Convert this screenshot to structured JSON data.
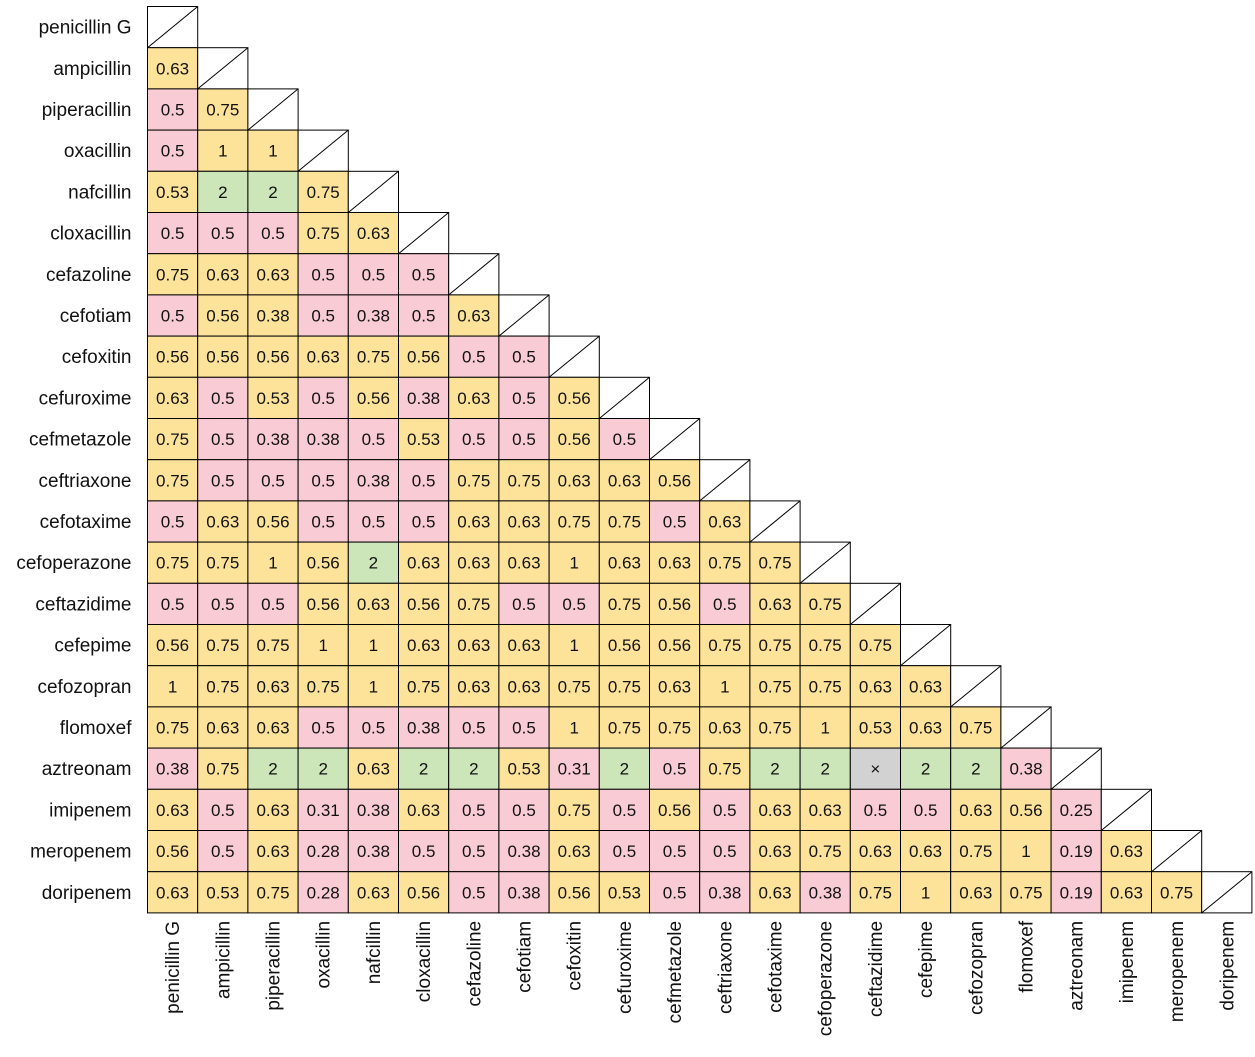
{
  "chart_data": {
    "type": "heatmap",
    "title": "",
    "drugs": [
      "penicillin G",
      "ampicillin",
      "piperacillin",
      "oxacillin",
      "nafcillin",
      "cloxacillin",
      "cefazoline",
      "cefotiam",
      "cefoxitin",
      "cefuroxime",
      "cefmetazole",
      "ceftriaxone",
      "cefotaxime",
      "cefoperazone",
      "ceftazidime",
      "cefepime",
      "cefozopran",
      "flomoxef",
      "aztreonam",
      "imipenem",
      "meropenem",
      "doripenem"
    ],
    "rows": [
      [],
      [
        {
          "v": "0.63",
          "c": "yellow"
        }
      ],
      [
        {
          "v": "0.5",
          "c": "pink"
        },
        {
          "v": "0.75",
          "c": "yellow"
        }
      ],
      [
        {
          "v": "0.5",
          "c": "pink"
        },
        {
          "v": "1",
          "c": "yellow"
        },
        {
          "v": "1",
          "c": "yellow"
        }
      ],
      [
        {
          "v": "0.53",
          "c": "yellow"
        },
        {
          "v": "2",
          "c": "green"
        },
        {
          "v": "2",
          "c": "green"
        },
        {
          "v": "0.75",
          "c": "yellow"
        }
      ],
      [
        {
          "v": "0.5",
          "c": "pink"
        },
        {
          "v": "0.5",
          "c": "pink"
        },
        {
          "v": "0.5",
          "c": "pink"
        },
        {
          "v": "0.75",
          "c": "yellow"
        },
        {
          "v": "0.63",
          "c": "yellow"
        }
      ],
      [
        {
          "v": "0.75",
          "c": "yellow"
        },
        {
          "v": "0.63",
          "c": "yellow"
        },
        {
          "v": "0.63",
          "c": "yellow"
        },
        {
          "v": "0.5",
          "c": "pink"
        },
        {
          "v": "0.5",
          "c": "pink"
        },
        {
          "v": "0.5",
          "c": "pink"
        }
      ],
      [
        {
          "v": "0.5",
          "c": "pink"
        },
        {
          "v": "0.56",
          "c": "yellow"
        },
        {
          "v": "0.38",
          "c": "yellow"
        },
        {
          "v": "0.5",
          "c": "pink"
        },
        {
          "v": "0.38",
          "c": "pink"
        },
        {
          "v": "0.5",
          "c": "pink"
        },
        {
          "v": "0.63",
          "c": "yellow"
        }
      ],
      [
        {
          "v": "0.56",
          "c": "yellow"
        },
        {
          "v": "0.56",
          "c": "yellow"
        },
        {
          "v": "0.56",
          "c": "yellow"
        },
        {
          "v": "0.63",
          "c": "yellow"
        },
        {
          "v": "0.75",
          "c": "yellow"
        },
        {
          "v": "0.56",
          "c": "yellow"
        },
        {
          "v": "0.5",
          "c": "pink"
        },
        {
          "v": "0.5",
          "c": "pink"
        }
      ],
      [
        {
          "v": "0.63",
          "c": "yellow"
        },
        {
          "v": "0.5",
          "c": "pink"
        },
        {
          "v": "0.53",
          "c": "yellow"
        },
        {
          "v": "0.5",
          "c": "pink"
        },
        {
          "v": "0.56",
          "c": "yellow"
        },
        {
          "v": "0.38",
          "c": "pink"
        },
        {
          "v": "0.63",
          "c": "yellow"
        },
        {
          "v": "0.5",
          "c": "pink"
        },
        {
          "v": "0.56",
          "c": "yellow"
        }
      ],
      [
        {
          "v": "0.75",
          "c": "yellow"
        },
        {
          "v": "0.5",
          "c": "pink"
        },
        {
          "v": "0.38",
          "c": "pink"
        },
        {
          "v": "0.38",
          "c": "pink"
        },
        {
          "v": "0.5",
          "c": "pink"
        },
        {
          "v": "0.53",
          "c": "yellow"
        },
        {
          "v": "0.5",
          "c": "pink"
        },
        {
          "v": "0.5",
          "c": "pink"
        },
        {
          "v": "0.56",
          "c": "yellow"
        },
        {
          "v": "0.5",
          "c": "pink"
        }
      ],
      [
        {
          "v": "0.75",
          "c": "yellow"
        },
        {
          "v": "0.5",
          "c": "pink"
        },
        {
          "v": "0.5",
          "c": "pink"
        },
        {
          "v": "0.5",
          "c": "pink"
        },
        {
          "v": "0.38",
          "c": "pink"
        },
        {
          "v": "0.5",
          "c": "pink"
        },
        {
          "v": "0.75",
          "c": "yellow"
        },
        {
          "v": "0.75",
          "c": "yellow"
        },
        {
          "v": "0.63",
          "c": "yellow"
        },
        {
          "v": "0.63",
          "c": "yellow"
        },
        {
          "v": "0.56",
          "c": "yellow"
        }
      ],
      [
        {
          "v": "0.5",
          "c": "pink"
        },
        {
          "v": "0.63",
          "c": "yellow"
        },
        {
          "v": "0.56",
          "c": "yellow"
        },
        {
          "v": "0.5",
          "c": "pink"
        },
        {
          "v": "0.5",
          "c": "pink"
        },
        {
          "v": "0.5",
          "c": "pink"
        },
        {
          "v": "0.63",
          "c": "yellow"
        },
        {
          "v": "0.63",
          "c": "yellow"
        },
        {
          "v": "0.75",
          "c": "yellow"
        },
        {
          "v": "0.75",
          "c": "yellow"
        },
        {
          "v": "0.5",
          "c": "pink"
        },
        {
          "v": "0.63",
          "c": "yellow"
        }
      ],
      [
        {
          "v": "0.75",
          "c": "yellow"
        },
        {
          "v": "0.75",
          "c": "yellow"
        },
        {
          "v": "1",
          "c": "yellow"
        },
        {
          "v": "0.56",
          "c": "yellow"
        },
        {
          "v": "2",
          "c": "green"
        },
        {
          "v": "0.63",
          "c": "yellow"
        },
        {
          "v": "0.63",
          "c": "yellow"
        },
        {
          "v": "0.63",
          "c": "yellow"
        },
        {
          "v": "1",
          "c": "yellow"
        },
        {
          "v": "0.63",
          "c": "yellow"
        },
        {
          "v": "0.63",
          "c": "yellow"
        },
        {
          "v": "0.75",
          "c": "yellow"
        },
        {
          "v": "0.75",
          "c": "yellow"
        }
      ],
      [
        {
          "v": "0.5",
          "c": "pink"
        },
        {
          "v": "0.5",
          "c": "pink"
        },
        {
          "v": "0.5",
          "c": "pink"
        },
        {
          "v": "0.56",
          "c": "yellow"
        },
        {
          "v": "0.63",
          "c": "yellow"
        },
        {
          "v": "0.56",
          "c": "yellow"
        },
        {
          "v": "0.75",
          "c": "yellow"
        },
        {
          "v": "0.5",
          "c": "pink"
        },
        {
          "v": "0.5",
          "c": "pink"
        },
        {
          "v": "0.75",
          "c": "yellow"
        },
        {
          "v": "0.56",
          "c": "yellow"
        },
        {
          "v": "0.5",
          "c": "pink"
        },
        {
          "v": "0.63",
          "c": "yellow"
        },
        {
          "v": "0.75",
          "c": "yellow"
        }
      ],
      [
        {
          "v": "0.56",
          "c": "yellow"
        },
        {
          "v": "0.75",
          "c": "yellow"
        },
        {
          "v": "0.75",
          "c": "yellow"
        },
        {
          "v": "1",
          "c": "yellow"
        },
        {
          "v": "1",
          "c": "yellow"
        },
        {
          "v": "0.63",
          "c": "yellow"
        },
        {
          "v": "0.63",
          "c": "yellow"
        },
        {
          "v": "0.63",
          "c": "yellow"
        },
        {
          "v": "1",
          "c": "yellow"
        },
        {
          "v": "0.56",
          "c": "yellow"
        },
        {
          "v": "0.56",
          "c": "yellow"
        },
        {
          "v": "0.75",
          "c": "yellow"
        },
        {
          "v": "0.75",
          "c": "yellow"
        },
        {
          "v": "0.75",
          "c": "yellow"
        },
        {
          "v": "0.75",
          "c": "yellow"
        }
      ],
      [
        {
          "v": "1",
          "c": "yellow"
        },
        {
          "v": "0.75",
          "c": "yellow"
        },
        {
          "v": "0.63",
          "c": "yellow"
        },
        {
          "v": "0.75",
          "c": "yellow"
        },
        {
          "v": "1",
          "c": "yellow"
        },
        {
          "v": "0.75",
          "c": "yellow"
        },
        {
          "v": "0.63",
          "c": "yellow"
        },
        {
          "v": "0.63",
          "c": "yellow"
        },
        {
          "v": "0.75",
          "c": "yellow"
        },
        {
          "v": "0.75",
          "c": "yellow"
        },
        {
          "v": "0.63",
          "c": "yellow"
        },
        {
          "v": "1",
          "c": "yellow"
        },
        {
          "v": "0.75",
          "c": "yellow"
        },
        {
          "v": "0.75",
          "c": "yellow"
        },
        {
          "v": "0.63",
          "c": "yellow"
        },
        {
          "v": "0.63",
          "c": "yellow"
        }
      ],
      [
        {
          "v": "0.75",
          "c": "yellow"
        },
        {
          "v": "0.63",
          "c": "yellow"
        },
        {
          "v": "0.63",
          "c": "yellow"
        },
        {
          "v": "0.5",
          "c": "pink"
        },
        {
          "v": "0.5",
          "c": "pink"
        },
        {
          "v": "0.38",
          "c": "pink"
        },
        {
          "v": "0.5",
          "c": "pink"
        },
        {
          "v": "0.5",
          "c": "pink"
        },
        {
          "v": "1",
          "c": "yellow"
        },
        {
          "v": "0.75",
          "c": "yellow"
        },
        {
          "v": "0.75",
          "c": "yellow"
        },
        {
          "v": "0.63",
          "c": "yellow"
        },
        {
          "v": "0.75",
          "c": "yellow"
        },
        {
          "v": "1",
          "c": "yellow"
        },
        {
          "v": "0.53",
          "c": "yellow"
        },
        {
          "v": "0.63",
          "c": "yellow"
        },
        {
          "v": "0.75",
          "c": "yellow"
        }
      ],
      [
        {
          "v": "0.38",
          "c": "pink"
        },
        {
          "v": "0.75",
          "c": "yellow"
        },
        {
          "v": "2",
          "c": "green"
        },
        {
          "v": "2",
          "c": "green"
        },
        {
          "v": "0.63",
          "c": "yellow"
        },
        {
          "v": "2",
          "c": "green"
        },
        {
          "v": "2",
          "c": "green"
        },
        {
          "v": "0.53",
          "c": "yellow"
        },
        {
          "v": "0.31",
          "c": "pink"
        },
        {
          "v": "2",
          "c": "green"
        },
        {
          "v": "0.5",
          "c": "pink"
        },
        {
          "v": "0.75",
          "c": "yellow"
        },
        {
          "v": "2",
          "c": "green"
        },
        {
          "v": "2",
          "c": "green"
        },
        {
          "v": "×",
          "c": "gray"
        },
        {
          "v": "2",
          "c": "green"
        },
        {
          "v": "2",
          "c": "green"
        },
        {
          "v": "0.38",
          "c": "pink"
        }
      ],
      [
        {
          "v": "0.63",
          "c": "yellow"
        },
        {
          "v": "0.5",
          "c": "pink"
        },
        {
          "v": "0.63",
          "c": "yellow"
        },
        {
          "v": "0.31",
          "c": "pink"
        },
        {
          "v": "0.38",
          "c": "pink"
        },
        {
          "v": "0.63",
          "c": "yellow"
        },
        {
          "v": "0.5",
          "c": "pink"
        },
        {
          "v": "0.5",
          "c": "pink"
        },
        {
          "v": "0.75",
          "c": "yellow"
        },
        {
          "v": "0.5",
          "c": "pink"
        },
        {
          "v": "0.56",
          "c": "yellow"
        },
        {
          "v": "0.5",
          "c": "pink"
        },
        {
          "v": "0.63",
          "c": "yellow"
        },
        {
          "v": "0.63",
          "c": "yellow"
        },
        {
          "v": "0.5",
          "c": "pink"
        },
        {
          "v": "0.5",
          "c": "pink"
        },
        {
          "v": "0.63",
          "c": "yellow"
        },
        {
          "v": "0.56",
          "c": "yellow"
        },
        {
          "v": "0.25",
          "c": "pink"
        }
      ],
      [
        {
          "v": "0.56",
          "c": "yellow"
        },
        {
          "v": "0.5",
          "c": "pink"
        },
        {
          "v": "0.63",
          "c": "yellow"
        },
        {
          "v": "0.28",
          "c": "pink"
        },
        {
          "v": "0.38",
          "c": "pink"
        },
        {
          "v": "0.5",
          "c": "pink"
        },
        {
          "v": "0.5",
          "c": "pink"
        },
        {
          "v": "0.38",
          "c": "pink"
        },
        {
          "v": "0.63",
          "c": "yellow"
        },
        {
          "v": "0.5",
          "c": "pink"
        },
        {
          "v": "0.5",
          "c": "pink"
        },
        {
          "v": "0.5",
          "c": "pink"
        },
        {
          "v": "0.63",
          "c": "yellow"
        },
        {
          "v": "0.75",
          "c": "yellow"
        },
        {
          "v": "0.63",
          "c": "yellow"
        },
        {
          "v": "0.63",
          "c": "yellow"
        },
        {
          "v": "0.75",
          "c": "yellow"
        },
        {
          "v": "1",
          "c": "yellow"
        },
        {
          "v": "0.19",
          "c": "pink"
        },
        {
          "v": "0.63",
          "c": "yellow"
        }
      ],
      [
        {
          "v": "0.63",
          "c": "yellow"
        },
        {
          "v": "0.53",
          "c": "yellow"
        },
        {
          "v": "0.75",
          "c": "yellow"
        },
        {
          "v": "0.28",
          "c": "pink"
        },
        {
          "v": "0.63",
          "c": "yellow"
        },
        {
          "v": "0.56",
          "c": "yellow"
        },
        {
          "v": "0.5",
          "c": "pink"
        },
        {
          "v": "0.38",
          "c": "pink"
        },
        {
          "v": "0.56",
          "c": "yellow"
        },
        {
          "v": "0.53",
          "c": "yellow"
        },
        {
          "v": "0.5",
          "c": "pink"
        },
        {
          "v": "0.38",
          "c": "pink"
        },
        {
          "v": "0.63",
          "c": "yellow"
        },
        {
          "v": "0.38",
          "c": "pink"
        },
        {
          "v": "0.75",
          "c": "yellow"
        },
        {
          "v": "1",
          "c": "yellow"
        },
        {
          "v": "0.63",
          "c": "yellow"
        },
        {
          "v": "0.75",
          "c": "yellow"
        },
        {
          "v": "0.19",
          "c": "pink"
        },
        {
          "v": "0.63",
          "c": "yellow"
        },
        {
          "v": "0.75",
          "c": "yellow"
        }
      ]
    ],
    "colors": {
      "yellow": "#fde39a",
      "pink": "#f9cbd5",
      "green": "#cde6b9",
      "gray": "#d2d2d2",
      "diagonal": "#ffffff",
      "line": "#000000"
    }
  }
}
